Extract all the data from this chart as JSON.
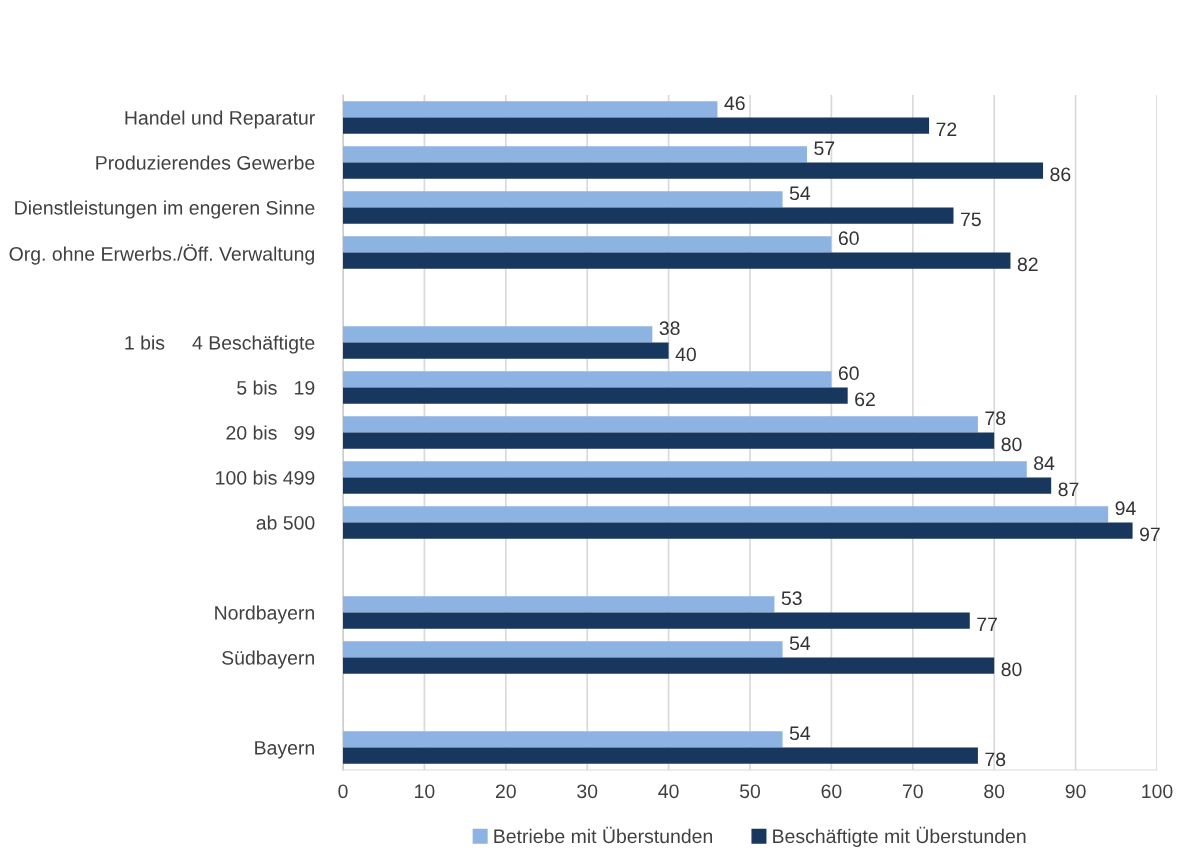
{
  "chart_data": {
    "type": "bar",
    "orientation": "horizontal",
    "categories": [
      "Handel und Reparatur",
      "Produzierendes Gewerbe",
      "Dienstleistungen im engeren Sinne",
      "Org. ohne Erwerbs./Öff. Verwaltung",
      null,
      "1 bis     4 Beschäftigte",
      "5 bis   19",
      "20 bis   99",
      "100 bis 499",
      "ab 500",
      null,
      "Nordbayern",
      "Südbayern",
      null,
      "Bayern"
    ],
    "series": [
      {
        "name": "Betriebe mit Überstunden",
        "color": "#8db3e2",
        "values": [
          46,
          57,
          54,
          60,
          null,
          38,
          60,
          78,
          84,
          94,
          null,
          53,
          54,
          null,
          54
        ]
      },
      {
        "name": "Beschäftigte mit Überstunden",
        "color": "#17375e",
        "values": [
          72,
          86,
          75,
          82,
          null,
          40,
          62,
          80,
          87,
          97,
          null,
          77,
          80,
          null,
          78
        ]
      }
    ],
    "xlim": [
      0,
      100
    ],
    "xticks": [
      0,
      10,
      20,
      30,
      40,
      50,
      60,
      70,
      80,
      90,
      100
    ],
    "grid": "x",
    "legend": "bottom",
    "data_labels": true
  }
}
